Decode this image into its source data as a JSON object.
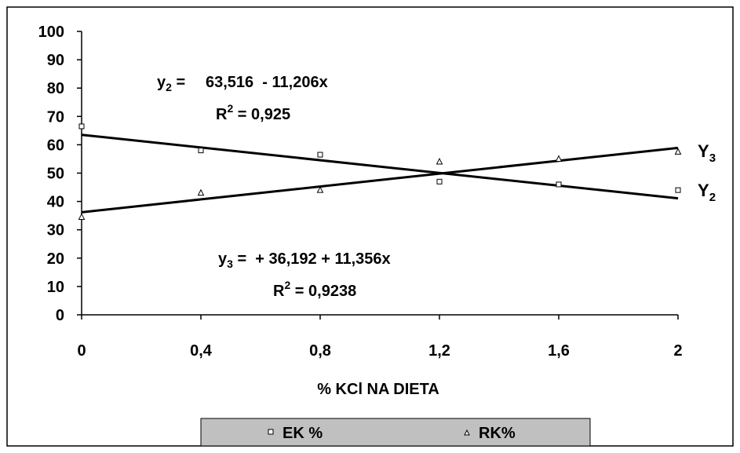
{
  "chart_data": {
    "type": "scatter",
    "xlabel": "% KCl NA DIETA",
    "x_ticks": [
      "0",
      "0,4",
      "0,8",
      "1,2",
      "1,6",
      "2"
    ],
    "y_ticks": [
      "0",
      "10",
      "20",
      "30",
      "40",
      "50",
      "60",
      "70",
      "80",
      "90",
      "100"
    ],
    "xlim": [
      0,
      2
    ],
    "ylim": [
      0,
      100
    ],
    "grid": false,
    "legend_position": "bottom",
    "series": [
      {
        "name": "EK %",
        "marker": "square",
        "x": [
          0,
          0.4,
          0.8,
          1.2,
          1.6,
          2.0
        ],
        "y": [
          66.5,
          58,
          56.5,
          47,
          46,
          44
        ],
        "fit": {
          "intercept": 63.516,
          "slope": -11.206
        },
        "equation": "y₂ = 63,516 - 11,206x",
        "r2": "R² = 0,925",
        "line_label": "Y₂"
      },
      {
        "name": "RK%",
        "marker": "triangle",
        "x": [
          0,
          0.4,
          0.8,
          1.2,
          1.6,
          2.0
        ],
        "y": [
          34.5,
          43,
          44,
          54,
          55,
          57.5
        ],
        "fit": {
          "intercept": 36.192,
          "slope": 11.356
        },
        "equation": "y₃ = + 36,192 + 11,356x",
        "r2": "R² = 0,9238",
        "line_label": "Y₃"
      }
    ],
    "colors": {
      "line": "#000000",
      "marker": "#000000",
      "legend_bg": "#c0c0c0"
    }
  }
}
